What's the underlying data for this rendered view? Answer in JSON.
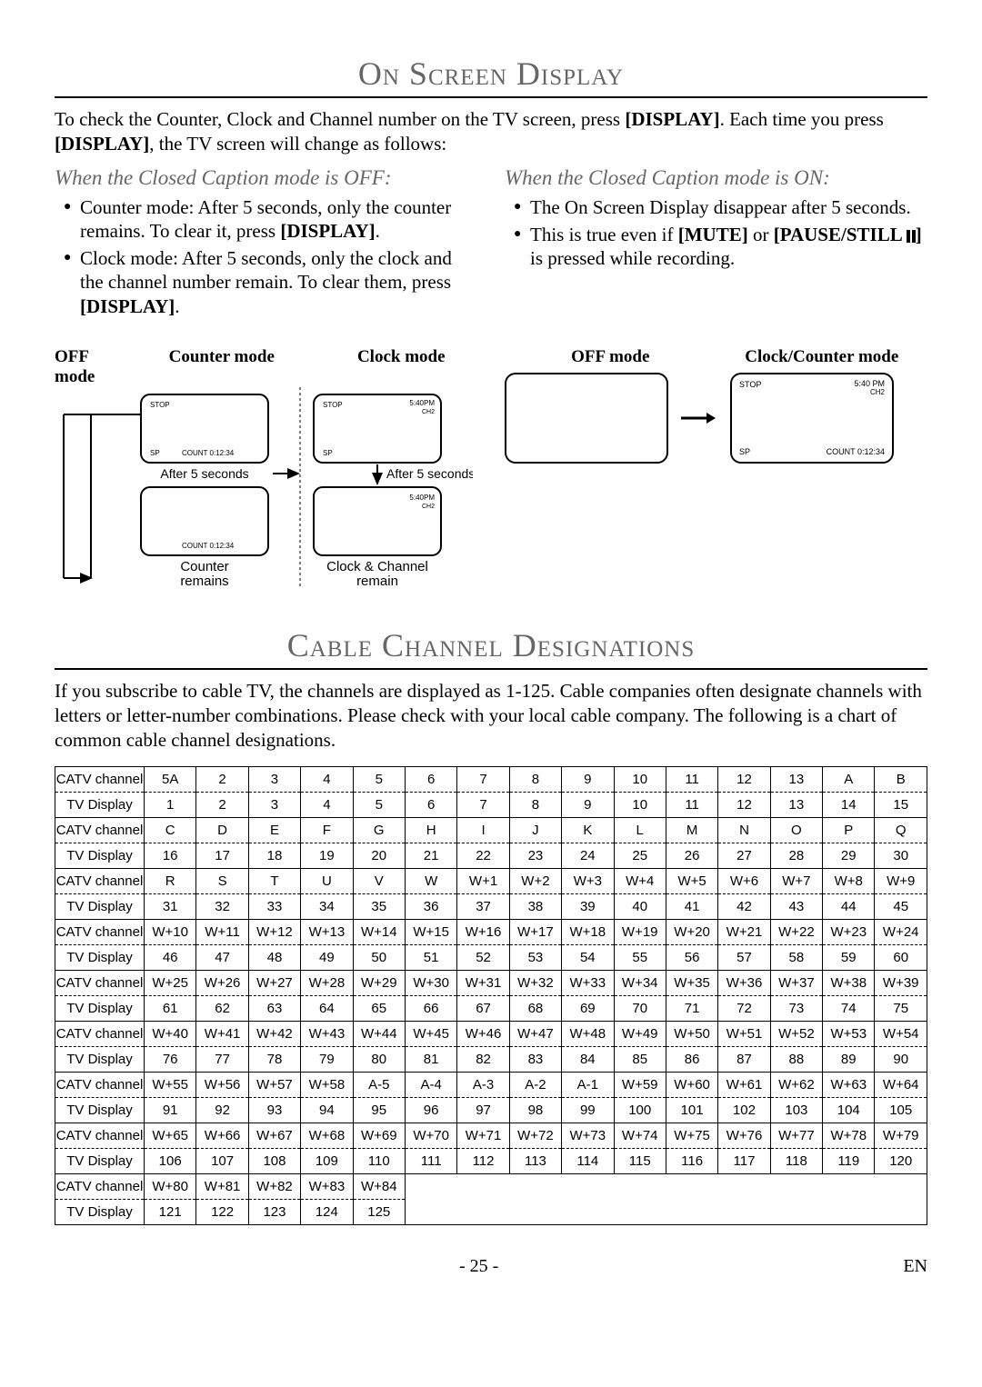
{
  "sections": {
    "osd_title": "On Screen Display",
    "intro": "To check the Counter, Clock and Channel number on the TV screen, press [DISPLAY]. Each time you press [DISPLAY], the TV screen will change as follows:",
    "left_head": "When the Closed Caption mode is OFF:",
    "left_bullets": [
      "Counter mode: After 5 seconds, only the counter remains. To clear it, press [DISPLAY].",
      "Clock mode: After 5 seconds, only the clock and the channel number remain. To clear them, press [DISPLAY]."
    ],
    "right_head": "When the Closed Caption mode is ON:",
    "right_bullets": [
      "The On Screen Display disappear after 5 seconds.",
      "This is true even if [MUTE] or [PAUSE/STILL ❚❚] is pressed while recording."
    ],
    "labels": {
      "off_mode": "OFF mode",
      "counter_mode": "Counter mode",
      "clock_mode": "Clock mode",
      "clock_counter_mode": "Clock/Counter mode",
      "after5": "After 5 seconds",
      "counter_remains": "Counter\nremains",
      "clock_channel_remain": "Clock & Channel\nremain"
    },
    "screen": {
      "stop": "STOP",
      "sp": "SP",
      "count": "COUNT 0:12:34",
      "count_r": "COUNT  0:12:34",
      "time": "5:40PM",
      "time_sp": "5:40 PM",
      "ch": "CH2"
    },
    "cable_title": "Cable Channel Designations",
    "cable_intro": "If you subscribe to cable TV, the channels are displayed as 1-125. Cable companies often designate channels with letters or letter-number combinations. Please check with your local cable company. The following is a chart of common cable channel designations.",
    "row_labels": {
      "catv": "CATV channel",
      "tv": "TV Display"
    }
  },
  "table": {
    "rows": [
      [
        "5A",
        "2",
        "3",
        "4",
        "5",
        "6",
        "7",
        "8",
        "9",
        "10",
        "11",
        "12",
        "13",
        "A",
        "B"
      ],
      [
        "1",
        "2",
        "3",
        "4",
        "5",
        "6",
        "7",
        "8",
        "9",
        "10",
        "11",
        "12",
        "13",
        "14",
        "15"
      ],
      [
        "C",
        "D",
        "E",
        "F",
        "G",
        "H",
        "I",
        "J",
        "K",
        "L",
        "M",
        "N",
        "O",
        "P",
        "Q"
      ],
      [
        "16",
        "17",
        "18",
        "19",
        "20",
        "21",
        "22",
        "23",
        "24",
        "25",
        "26",
        "27",
        "28",
        "29",
        "30"
      ],
      [
        "R",
        "S",
        "T",
        "U",
        "V",
        "W",
        "W+1",
        "W+2",
        "W+3",
        "W+4",
        "W+5",
        "W+6",
        "W+7",
        "W+8",
        "W+9"
      ],
      [
        "31",
        "32",
        "33",
        "34",
        "35",
        "36",
        "37",
        "38",
        "39",
        "40",
        "41",
        "42",
        "43",
        "44",
        "45"
      ],
      [
        "W+10",
        "W+11",
        "W+12",
        "W+13",
        "W+14",
        "W+15",
        "W+16",
        "W+17",
        "W+18",
        "W+19",
        "W+20",
        "W+21",
        "W+22",
        "W+23",
        "W+24"
      ],
      [
        "46",
        "47",
        "48",
        "49",
        "50",
        "51",
        "52",
        "53",
        "54",
        "55",
        "56",
        "57",
        "58",
        "59",
        "60"
      ],
      [
        "W+25",
        "W+26",
        "W+27",
        "W+28",
        "W+29",
        "W+30",
        "W+31",
        "W+32",
        "W+33",
        "W+34",
        "W+35",
        "W+36",
        "W+37",
        "W+38",
        "W+39"
      ],
      [
        "61",
        "62",
        "63",
        "64",
        "65",
        "66",
        "67",
        "68",
        "69",
        "70",
        "71",
        "72",
        "73",
        "74",
        "75"
      ],
      [
        "W+40",
        "W+41",
        "W+42",
        "W+43",
        "W+44",
        "W+45",
        "W+46",
        "W+47",
        "W+48",
        "W+49",
        "W+50",
        "W+51",
        "W+52",
        "W+53",
        "W+54"
      ],
      [
        "76",
        "77",
        "78",
        "79",
        "80",
        "81",
        "82",
        "83",
        "84",
        "85",
        "86",
        "87",
        "88",
        "89",
        "90"
      ],
      [
        "W+55",
        "W+56",
        "W+57",
        "W+58",
        "A-5",
        "A-4",
        "A-3",
        "A-2",
        "A-1",
        "W+59",
        "W+60",
        "W+61",
        "W+62",
        "W+63",
        "W+64"
      ],
      [
        "91",
        "92",
        "93",
        "94",
        "95",
        "96",
        "97",
        "98",
        "99",
        "100",
        "101",
        "102",
        "103",
        "104",
        "105"
      ],
      [
        "W+65",
        "W+66",
        "W+67",
        "W+68",
        "W+69",
        "W+70",
        "W+71",
        "W+72",
        "W+73",
        "W+74",
        "W+75",
        "W+76",
        "W+77",
        "W+78",
        "W+79"
      ],
      [
        "106",
        "107",
        "108",
        "109",
        "110",
        "111",
        "112",
        "113",
        "114",
        "115",
        "116",
        "117",
        "118",
        "119",
        "120"
      ],
      [
        "W+80",
        "W+81",
        "W+82",
        "W+83",
        "W+84"
      ],
      [
        "121",
        "122",
        "123",
        "124",
        "125"
      ]
    ]
  },
  "footer": {
    "page": "- 25 -",
    "lang": "EN"
  },
  "colors": {
    "text": "#000000",
    "gray": "#666666",
    "bg": "#ffffff"
  }
}
